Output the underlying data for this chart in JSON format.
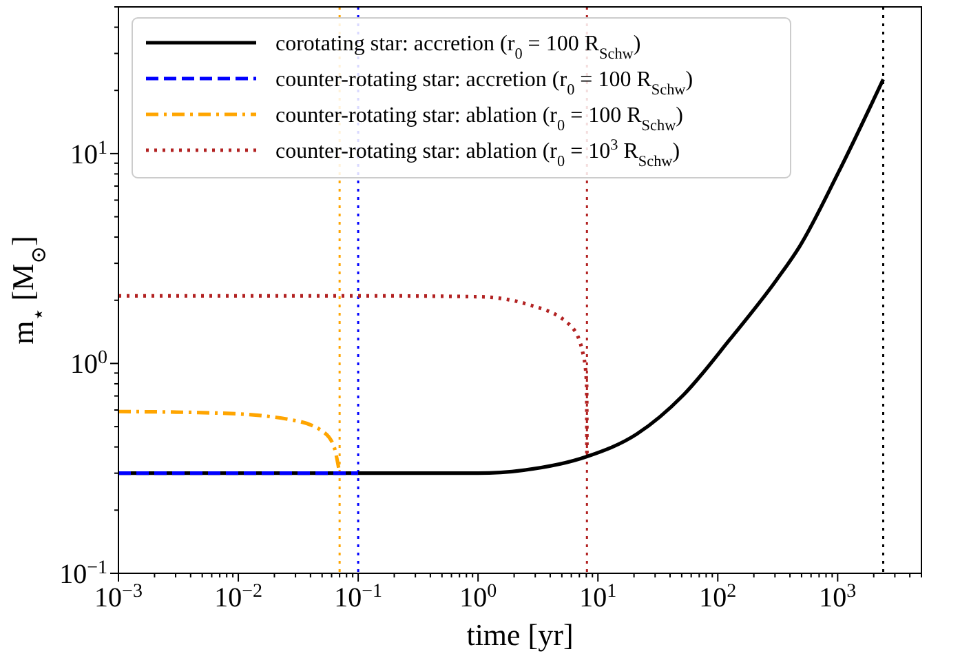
{
  "chart_data": {
    "type": "line",
    "xlabel": "time [yr]",
    "ylabel": "m$_{⋆}$ [M$_{⊙}$]",
    "log": "xy",
    "legend": "top left",
    "grid": false,
    "xlim": [
      0.001,
      5000
    ],
    "ylim": [
      0.1,
      50
    ],
    "xticks": [
      {
        "value": 0.001,
        "label": "10$^{−3}$"
      },
      {
        "value": 0.01,
        "label": "10$^{−2}$"
      },
      {
        "value": 0.1,
        "label": "10$^{−1}$"
      },
      {
        "value": 1,
        "label": "10$^{0}$"
      },
      {
        "value": 10,
        "label": "10$^{1}$"
      },
      {
        "value": 100,
        "label": "10$^{2}$"
      },
      {
        "value": 1000,
        "label": "10$^{3}$"
      },
      {
        "value": 0.002,
        "label": null
      },
      {
        "value": 0.003,
        "label": null
      },
      {
        "value": 0.004,
        "label": null
      },
      {
        "value": 0.005,
        "label": null
      },
      {
        "value": 0.006,
        "label": null
      },
      {
        "value": 0.007,
        "label": null
      },
      {
        "value": 0.008,
        "label": null
      },
      {
        "value": 0.009,
        "label": null
      },
      {
        "value": 0.02,
        "label": null
      },
      {
        "value": 0.03,
        "label": null
      },
      {
        "value": 0.04,
        "label": null
      },
      {
        "value": 0.05,
        "label": null
      },
      {
        "value": 0.06,
        "label": null
      },
      {
        "value": 0.07,
        "label": null
      },
      {
        "value": 0.08,
        "label": null
      },
      {
        "value": 0.09,
        "label": null
      },
      {
        "value": 0.2,
        "label": null
      },
      {
        "value": 0.3,
        "label": null
      },
      {
        "value": 0.4,
        "label": null
      },
      {
        "value": 0.5,
        "label": null
      },
      {
        "value": 0.6,
        "label": null
      },
      {
        "value": 0.7,
        "label": null
      },
      {
        "value": 0.8,
        "label": null
      },
      {
        "value": 0.9,
        "label": null
      },
      {
        "value": 2,
        "label": null
      },
      {
        "value": 3,
        "label": null
      },
      {
        "value": 4,
        "label": null
      },
      {
        "value": 5,
        "label": null
      },
      {
        "value": 6,
        "label": null
      },
      {
        "value": 7,
        "label": null
      },
      {
        "value": 8,
        "label": null
      },
      {
        "value": 9,
        "label": null
      },
      {
        "value": 20,
        "label": null
      },
      {
        "value": 30,
        "label": null
      },
      {
        "value": 40,
        "label": null
      },
      {
        "value": 50,
        "label": null
      },
      {
        "value": 60,
        "label": null
      },
      {
        "value": 70,
        "label": null
      },
      {
        "value": 80,
        "label": null
      },
      {
        "value": 90,
        "label": null
      },
      {
        "value": 200,
        "label": null
      },
      {
        "value": 300,
        "label": null
      },
      {
        "value": 400,
        "label": null
      },
      {
        "value": 500,
        "label": null
      },
      {
        "value": 600,
        "label": null
      },
      {
        "value": 700,
        "label": null
      },
      {
        "value": 800,
        "label": null
      },
      {
        "value": 900,
        "label": null
      },
      {
        "value": 2000,
        "label": null
      },
      {
        "value": 3000,
        "label": null
      },
      {
        "value": 4000,
        "label": null
      },
      {
        "value": 5000,
        "label": null
      }
    ],
    "yticks": [
      {
        "value": 0.1,
        "label": "10$^{−1}$"
      },
      {
        "value": 1,
        "label": "10$^{0}$"
      },
      {
        "value": 10,
        "label": "10$^{1}$"
      },
      {
        "value": 0.2,
        "label": null
      },
      {
        "value": 0.3,
        "label": null
      },
      {
        "value": 0.4,
        "label": null
      },
      {
        "value": 0.5,
        "label": null
      },
      {
        "value": 0.6,
        "label": null
      },
      {
        "value": 0.7,
        "label": null
      },
      {
        "value": 0.8,
        "label": null
      },
      {
        "value": 0.9,
        "label": null
      },
      {
        "value": 2,
        "label": null
      },
      {
        "value": 3,
        "label": null
      },
      {
        "value": 4,
        "label": null
      },
      {
        "value": 5,
        "label": null
      },
      {
        "value": 6,
        "label": null
      },
      {
        "value": 7,
        "label": null
      },
      {
        "value": 8,
        "label": null
      },
      {
        "value": 9,
        "label": null
      },
      {
        "value": 20,
        "label": null
      },
      {
        "value": 30,
        "label": null
      },
      {
        "value": 40,
        "label": null
      },
      {
        "value": 50,
        "label": null
      }
    ],
    "series": [
      {
        "name": "corotating star: accretion (r$_{0}$ = 100 R$_{Schw}$)",
        "color": "#000000",
        "line_style": "solid",
        "x": [
          0.001,
          0.1,
          1,
          2.4,
          8.1,
          21,
          52,
          126,
          309,
          480,
          1000,
          2400
        ],
        "values": [
          0.3,
          0.3,
          0.3,
          0.31,
          0.36,
          0.46,
          0.71,
          1.3,
          2.5,
          3.6,
          8,
          22.6
        ]
      },
      {
        "name": "counter-rotating star: accretion (r$_{0}$ = 100 R$_{Schw}$)",
        "color": "#0000ff",
        "line_style": "dashed",
        "x": [
          0.001,
          0.1
        ],
        "values": [
          0.3,
          0.3
        ]
      },
      {
        "name": "counter-rotating star: ablation (r$_{0}$ = 100 R$_{Schw}$)",
        "color": "#ffa500",
        "line_style": "dashdot",
        "x": [
          0.001,
          0.007,
          0.027,
          0.049,
          0.062,
          0.07
        ],
        "values": [
          0.59,
          0.58,
          0.54,
          0.48,
          0.41,
          0.3
        ]
      },
      {
        "name": "counter-rotating star: ablation (r$_{0}$ = 10$^{3}$ R$_{Schw}$)",
        "color": "#b22222",
        "line_style": "dotted",
        "x": [
          0.001,
          0.1,
          1,
          2.7,
          6,
          7.6,
          8.05,
          8.1
        ],
        "values": [
          2.1,
          2.1,
          2.08,
          1.9,
          1.5,
          1.08,
          0.8,
          0.36
        ]
      }
    ],
    "ref_lines": [
      {
        "axis": "x",
        "value": 0.07,
        "color": "#ffa500",
        "line_style": "dotted"
      },
      {
        "axis": "x",
        "value": 0.1,
        "color": "#0000ff",
        "line_style": "dotted"
      },
      {
        "axis": "x",
        "value": 8.1,
        "color": "#b22222",
        "line_style": "dotted"
      },
      {
        "axis": "x",
        "value": 2400,
        "color": "#000000",
        "line_style": "dotted"
      }
    ]
  }
}
